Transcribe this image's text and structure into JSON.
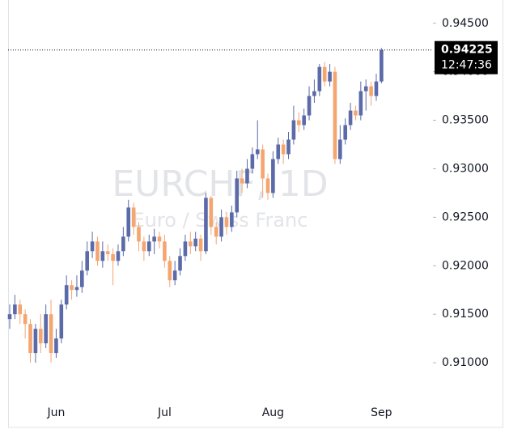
{
  "chart_data": {
    "type": "candlestick",
    "watermark": {
      "symbol": "EURCHF, 1D",
      "description": "Euro / Swiss Franc"
    },
    "categories": [
      null,
      null,
      null,
      null,
      null,
      null,
      null,
      null,
      null,
      "Jun",
      null,
      null,
      null,
      null,
      null,
      null,
      null,
      null,
      null,
      null,
      null,
      null,
      null,
      null,
      null,
      null,
      null,
      null,
      null,
      null,
      "Jul",
      null,
      null,
      null,
      null,
      null,
      null,
      null,
      null,
      null,
      null,
      null,
      null,
      null,
      null,
      null,
      null,
      null,
      null,
      null,
      null,
      "Aug",
      null,
      null,
      null,
      null,
      null,
      null,
      null,
      null,
      null,
      null,
      null,
      null,
      null,
      null,
      null,
      null,
      null,
      null,
      null,
      null,
      "Sep"
    ],
    "open": [
      0.9145,
      0.915,
      0.916,
      0.915,
      0.914,
      0.911,
      0.9135,
      0.912,
      0.915,
      0.911,
      0.9125,
      0.916,
      0.918,
      0.9175,
      0.9178,
      0.9195,
      0.9215,
      0.9225,
      0.9205,
      0.9215,
      0.9212,
      0.9205,
      0.9215,
      0.923,
      0.926,
      0.924,
      0.9225,
      0.9215,
      0.9225,
      0.923,
      0.9225,
      0.9205,
      0.9185,
      0.9195,
      0.921,
      0.9225,
      0.922,
      0.9228,
      0.9215,
      0.927,
      0.924,
      0.923,
      0.925,
      0.924,
      0.9255,
      0.929,
      0.9285,
      0.93,
      0.9315,
      0.932,
      0.929,
      0.9275,
      0.931,
      0.9325,
      0.9315,
      0.933,
      0.935,
      0.9345,
      0.9355,
      0.9375,
      0.938,
      0.9405,
      0.939,
      0.94,
      0.931,
      0.933,
      0.9345,
      0.936,
      0.9355,
      0.938,
      0.9385,
      0.9375,
      0.939
    ],
    "high": [
      0.916,
      0.917,
      0.9165,
      0.9155,
      0.9145,
      0.914,
      0.915,
      0.916,
      0.9165,
      0.9135,
      0.9165,
      0.919,
      0.9185,
      0.919,
      0.9205,
      0.9225,
      0.9235,
      0.923,
      0.9225,
      0.9222,
      0.9218,
      0.9222,
      0.924,
      0.9268,
      0.9265,
      0.9245,
      0.923,
      0.9232,
      0.9238,
      0.9235,
      0.9232,
      0.921,
      0.9205,
      0.9218,
      0.9232,
      0.9235,
      0.9235,
      0.9232,
      0.9275,
      0.9272,
      0.9245,
      0.9258,
      0.9255,
      0.9262,
      0.9298,
      0.93,
      0.931,
      0.9322,
      0.935,
      0.9325,
      0.9295,
      0.9318,
      0.9332,
      0.933,
      0.9338,
      0.9365,
      0.9358,
      0.9362,
      0.9385,
      0.9392,
      0.9408,
      0.941,
      0.9408,
      0.9405,
      0.9345,
      0.9352,
      0.9368,
      0.9365,
      0.939,
      0.9392,
      0.939,
      0.9398,
      0.94245
    ],
    "low": [
      0.9135,
      0.9145,
      0.914,
      0.9125,
      0.91,
      0.91,
      0.911,
      0.9115,
      0.91,
      0.9105,
      0.912,
      0.9155,
      0.9165,
      0.9168,
      0.9172,
      0.919,
      0.9208,
      0.92,
      0.9198,
      0.9205,
      0.918,
      0.92,
      0.921,
      0.9225,
      0.9232,
      0.9215,
      0.9205,
      0.921,
      0.9212,
      0.9218,
      0.9198,
      0.9178,
      0.918,
      0.919,
      0.9205,
      0.9212,
      0.9215,
      0.9205,
      0.9212,
      0.9232,
      0.9222,
      0.9225,
      0.9232,
      0.9235,
      0.925,
      0.9275,
      0.928,
      0.9295,
      0.931,
      0.927,
      0.9268,
      0.927,
      0.9305,
      0.9305,
      0.931,
      0.9325,
      0.9338,
      0.934,
      0.935,
      0.9368,
      0.9375,
      0.9385,
      0.9385,
      0.9305,
      0.9305,
      0.9325,
      0.934,
      0.935,
      0.935,
      0.936,
      0.9365,
      0.937,
      0.9388
    ],
    "close": [
      0.915,
      0.916,
      0.915,
      0.914,
      0.911,
      0.9135,
      0.912,
      0.915,
      0.911,
      0.9125,
      0.916,
      0.918,
      0.9175,
      0.9178,
      0.9195,
      0.9215,
      0.9225,
      0.9205,
      0.9215,
      0.9212,
      0.9205,
      0.9215,
      0.923,
      0.926,
      0.924,
      0.9225,
      0.9215,
      0.9225,
      0.923,
      0.9225,
      0.9205,
      0.9185,
      0.9195,
      0.921,
      0.9225,
      0.922,
      0.9228,
      0.9215,
      0.927,
      0.924,
      0.923,
      0.925,
      0.924,
      0.9255,
      0.929,
      0.9285,
      0.93,
      0.9315,
      0.932,
      0.929,
      0.9275,
      0.931,
      0.9325,
      0.9315,
      0.933,
      0.935,
      0.9345,
      0.9355,
      0.9375,
      0.938,
      0.9405,
      0.939,
      0.94,
      0.931,
      0.933,
      0.9345,
      0.936,
      0.9355,
      0.938,
      0.9385,
      0.9375,
      0.939,
      0.94225
    ],
    "up_color": "#5b6aa8",
    "down_color": "#f4a570",
    "ylim": [
      0.9065,
      0.9474
    ],
    "yticks": [
      {
        "value": 0.945,
        "label": "0.94500"
      },
      {
        "value": 0.94,
        "label": "0.94000"
      },
      {
        "value": 0.935,
        "label": "0.93500"
      },
      {
        "value": 0.93,
        "label": "0.93000"
      },
      {
        "value": 0.925,
        "label": "0.92500"
      },
      {
        "value": 0.92,
        "label": "0.92000"
      },
      {
        "value": 0.915,
        "label": "0.91500"
      },
      {
        "value": 0.91,
        "label": "0.91000"
      }
    ],
    "grid": false,
    "last_price": 0.94225,
    "countdown": "12:47:36"
  }
}
